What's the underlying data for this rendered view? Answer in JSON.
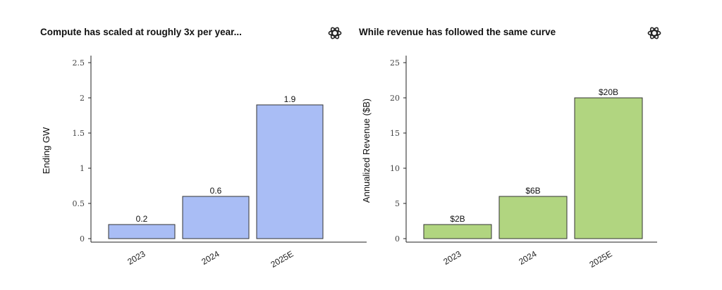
{
  "chart_data": [
    {
      "type": "bar",
      "title": "Compute has scaled at roughly 3x per year...",
      "xlabel": "",
      "ylabel": "Ending GW",
      "categories": [
        "2023",
        "2024",
        "2025E"
      ],
      "values": [
        0.2,
        0.6,
        1.9
      ],
      "data_labels": [
        "0.2",
        "0.6",
        "1.9"
      ],
      "yticks": [
        "0",
        "0.5",
        "1",
        "1.5",
        "2",
        "2.5"
      ],
      "ylim": [
        0,
        2.5
      ],
      "grid": false,
      "bar_color": "#a9bdf5",
      "logo": "openai-logo-icon"
    },
    {
      "type": "bar",
      "title": "While revenue has followed the same curve",
      "xlabel": "",
      "ylabel": "Annualized Revenue ($B)",
      "categories": [
        "2023",
        "2024",
        "2025E"
      ],
      "values": [
        2,
        6,
        20
      ],
      "data_labels": [
        "$2B",
        "$6B",
        "$20B"
      ],
      "yticks": [
        "0",
        "5",
        "10",
        "15",
        "20",
        "25"
      ],
      "ylim": [
        0,
        25
      ],
      "grid": false,
      "bar_color": "#b1d580",
      "logo": "openai-logo-icon"
    }
  ]
}
